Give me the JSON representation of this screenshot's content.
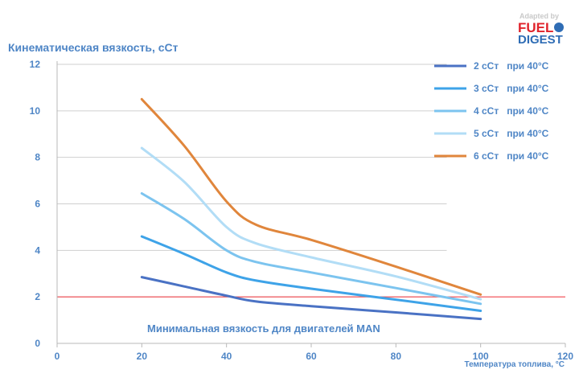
{
  "logo": {
    "adapted_by": "Adapted by",
    "fuel": "FUEL",
    "digest": "DIGEST"
  },
  "chart_data": {
    "type": "line",
    "title": "",
    "ylabel": "Кинематическая вязкость, сСт",
    "xlabel": "Температура топлива, °С",
    "xlim": [
      0,
      120
    ],
    "ylim": [
      0,
      12
    ],
    "xticks": [
      "0",
      "20",
      "40",
      "60",
      "80",
      "100",
      "120"
    ],
    "yticks": [
      "0",
      "2",
      "4",
      "6",
      "8",
      "10",
      "12"
    ],
    "grid": "horizontal",
    "legend_position": "top-right",
    "annotation": "Минимальная вязкость для двигателей MAN",
    "reference_line": {
      "y": 2,
      "color": "#f0444b"
    },
    "series": [
      {
        "name": "2 сСт   при 40°C",
        "color": "#4a72c4",
        "points": [
          [
            20,
            2.85
          ],
          [
            30,
            2.45
          ],
          [
            40,
            2.05
          ],
          [
            47,
            1.8
          ],
          [
            60,
            1.6
          ],
          [
            80,
            1.33
          ],
          [
            100,
            1.05
          ]
        ]
      },
      {
        "name": "3 сСт   при 40°C",
        "color": "#3ea3e8",
        "points": [
          [
            20,
            4.6
          ],
          [
            30,
            3.85
          ],
          [
            40,
            3.05
          ],
          [
            47,
            2.7
          ],
          [
            60,
            2.35
          ],
          [
            80,
            1.88
          ],
          [
            100,
            1.4
          ]
        ]
      },
      {
        "name": "4 сСт   при 40°C",
        "color": "#7cc4ef",
        "points": [
          [
            20,
            6.45
          ],
          [
            30,
            5.35
          ],
          [
            40,
            4.0
          ],
          [
            47,
            3.5
          ],
          [
            60,
            3.05
          ],
          [
            80,
            2.38
          ],
          [
            100,
            1.7
          ]
        ]
      },
      {
        "name": "5 сСт   при 40°C",
        "color": "#b2ddf6",
        "points": [
          [
            20,
            8.4
          ],
          [
            30,
            6.95
          ],
          [
            40,
            5.0
          ],
          [
            47,
            4.3
          ],
          [
            60,
            3.7
          ],
          [
            80,
            2.88
          ],
          [
            100,
            1.9
          ]
        ]
      },
      {
        "name": "6 сСт   при 40°C",
        "color": "#e0863c",
        "points": [
          [
            20,
            10.5
          ],
          [
            30,
            8.5
          ],
          [
            40,
            6.1
          ],
          [
            47,
            5.1
          ],
          [
            60,
            4.45
          ],
          [
            80,
            3.3
          ],
          [
            100,
            2.1
          ]
        ]
      }
    ]
  }
}
